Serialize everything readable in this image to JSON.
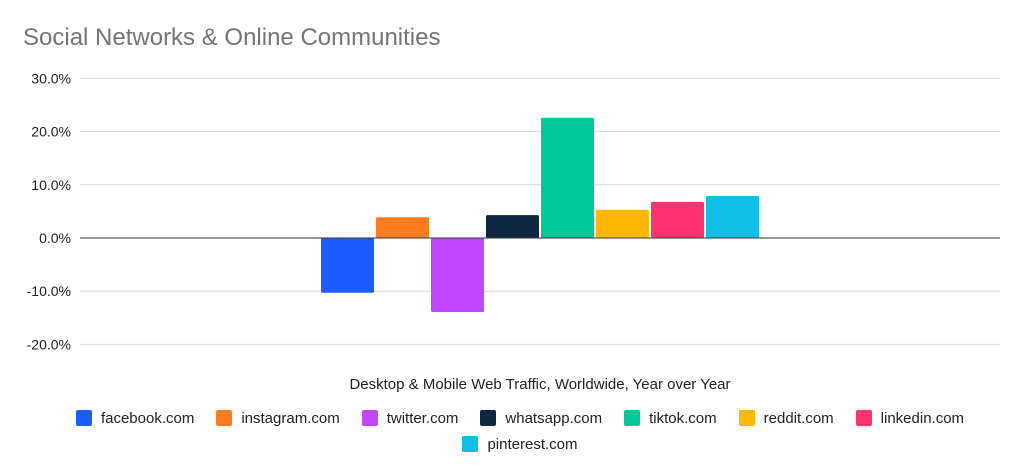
{
  "chart_data": {
    "type": "bar",
    "title": "Social Networks & Online Communities",
    "xlabel": "Desktop & Mobile Web Traffic, Worldwide, Year over Year",
    "ylabel": "",
    "ylim": [
      -20,
      30
    ],
    "yticks": [
      30,
      20,
      10,
      0,
      -10,
      -20
    ],
    "ytick_labels": [
      "30.0%",
      "20.0%",
      "10.0%",
      "0.0%",
      "-10.0%",
      "-20.0%"
    ],
    "grid": true,
    "legend_position": "bottom",
    "series": [
      {
        "name": "facebook.com",
        "value": -10.3,
        "color": "#1a5cff"
      },
      {
        "name": "instagram.com",
        "value": 3.9,
        "color": "#ff7b1e"
      },
      {
        "name": "twitter.com",
        "value": -13.9,
        "color": "#c445ff"
      },
      {
        "name": "whatsapp.com",
        "value": 4.3,
        "color": "#0c2642"
      },
      {
        "name": "tiktok.com",
        "value": 22.6,
        "color": "#00c99a"
      },
      {
        "name": "reddit.com",
        "value": 5.3,
        "color": "#ffb800"
      },
      {
        "name": "linkedin.com",
        "value": 6.8,
        "color": "#ff3270"
      },
      {
        "name": "pinterest.com",
        "value": 7.9,
        "color": "#10bfe6"
      }
    ]
  }
}
